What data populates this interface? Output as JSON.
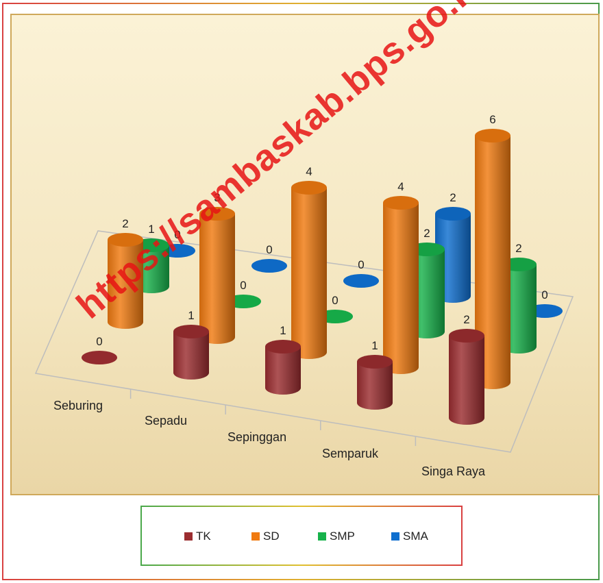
{
  "chart_data": {
    "type": "bar",
    "title": "",
    "xlabel": "",
    "ylabel": "",
    "categories": [
      "Seburing",
      "Sepadu",
      "Sepinggan",
      "Semparuk",
      "Singa Raya"
    ],
    "series": [
      {
        "name": "TK",
        "color": "#9b2d30",
        "values": [
          0,
          1,
          1,
          1,
          2
        ]
      },
      {
        "name": "SD",
        "color": "#f07a10",
        "values": [
          2,
          3,
          4,
          4,
          6
        ]
      },
      {
        "name": "SMP",
        "color": "#17b24b",
        "values": [
          1,
          0,
          0,
          2,
          2
        ]
      },
      {
        "name": "SMA",
        "color": "#0f6fcf",
        "values": [
          0,
          0,
          0,
          2,
          0
        ]
      }
    ],
    "ylim": [
      0,
      6
    ],
    "grid": false,
    "legend": "bottom",
    "style": "3d-cylinder"
  },
  "watermark": "https://sambaskab.bps.go.id"
}
